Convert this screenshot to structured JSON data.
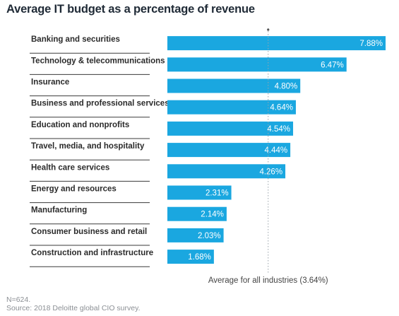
{
  "chart_data": {
    "type": "bar",
    "orientation": "horizontal",
    "title": "Average IT budget as a percentage of revenue",
    "categories": [
      "Banking and securities",
      "Technology & telecommunications",
      "Insurance",
      "Business and professional services",
      "Education and nonprofits",
      "Travel, media, and hospitality",
      "Health care services",
      "Energy and resources",
      "Manufacturing",
      "Consumer business and retail",
      "Construction and infrastructure"
    ],
    "values": [
      7.88,
      6.47,
      4.8,
      4.64,
      4.54,
      4.44,
      4.26,
      2.31,
      2.14,
      2.03,
      1.68
    ],
    "value_labels": [
      "7.88%",
      "6.47%",
      "4.80%",
      "4.64%",
      "4.54%",
      "4.44%",
      "4.26%",
      "2.31%",
      "2.14%",
      "2.03%",
      "1.68%"
    ],
    "reference_line": {
      "value": 3.64,
      "label": "Average for all industries (3.64%)"
    },
    "xlim": [
      0,
      7.88
    ],
    "grid": false,
    "bar_color": "#1aa7e0",
    "line_color": "#9aa3ab",
    "notes": [
      "N=624.",
      "Source: 2018 Deloitte global CIO survey."
    ]
  }
}
